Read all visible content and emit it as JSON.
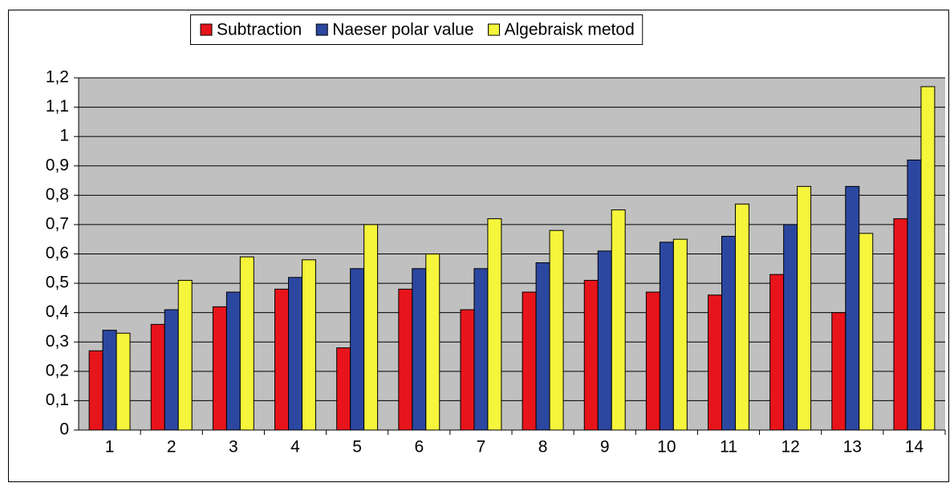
{
  "chart_data": {
    "type": "bar",
    "categories": [
      "1",
      "2",
      "3",
      "4",
      "5",
      "6",
      "7",
      "8",
      "9",
      "10",
      "11",
      "12",
      "13",
      "14"
    ],
    "series": [
      {
        "name": "Subtraction",
        "color": "#e8141b",
        "values": [
          0.27,
          0.36,
          0.42,
          0.48,
          0.28,
          0.48,
          0.41,
          0.47,
          0.51,
          0.47,
          0.46,
          0.53,
          0.4,
          0.72
        ]
      },
      {
        "name": "Naeser polar value",
        "color": "#2c47a0",
        "values": [
          0.34,
          0.41,
          0.47,
          0.52,
          0.55,
          0.55,
          0.55,
          0.57,
          0.61,
          0.64,
          0.66,
          0.7,
          0.83,
          0.92
        ]
      },
      {
        "name": "Algebraisk metod",
        "color": "#f5f53c",
        "values": [
          0.33,
          0.51,
          0.59,
          0.58,
          0.7,
          0.6,
          0.72,
          0.68,
          0.75,
          0.65,
          0.77,
          0.83,
          0.67,
          1.17
        ]
      }
    ],
    "ylim": [
      0,
      1.2
    ],
    "yticks": [
      0,
      {
        "value": 0.1,
        "label": "0,1"
      },
      {
        "value": 0.2,
        "label": "0,2"
      },
      {
        "value": 0.3,
        "label": "0,3"
      },
      {
        "value": 0.4,
        "label": "0,4"
      },
      {
        "value": 0.5,
        "label": "0,5"
      },
      {
        "value": 0.6,
        "label": "0,6"
      },
      {
        "value": 0.7,
        "label": "0,7"
      },
      {
        "value": 0.8,
        "label": "0,8"
      },
      {
        "value": 0.9,
        "label": "0,9"
      },
      1,
      {
        "value": 1.1,
        "label": "1,1"
      },
      {
        "value": 1.2,
        "label": "1,2"
      }
    ],
    "grid": true,
    "legend": "top",
    "background": "#c0c0c0"
  }
}
